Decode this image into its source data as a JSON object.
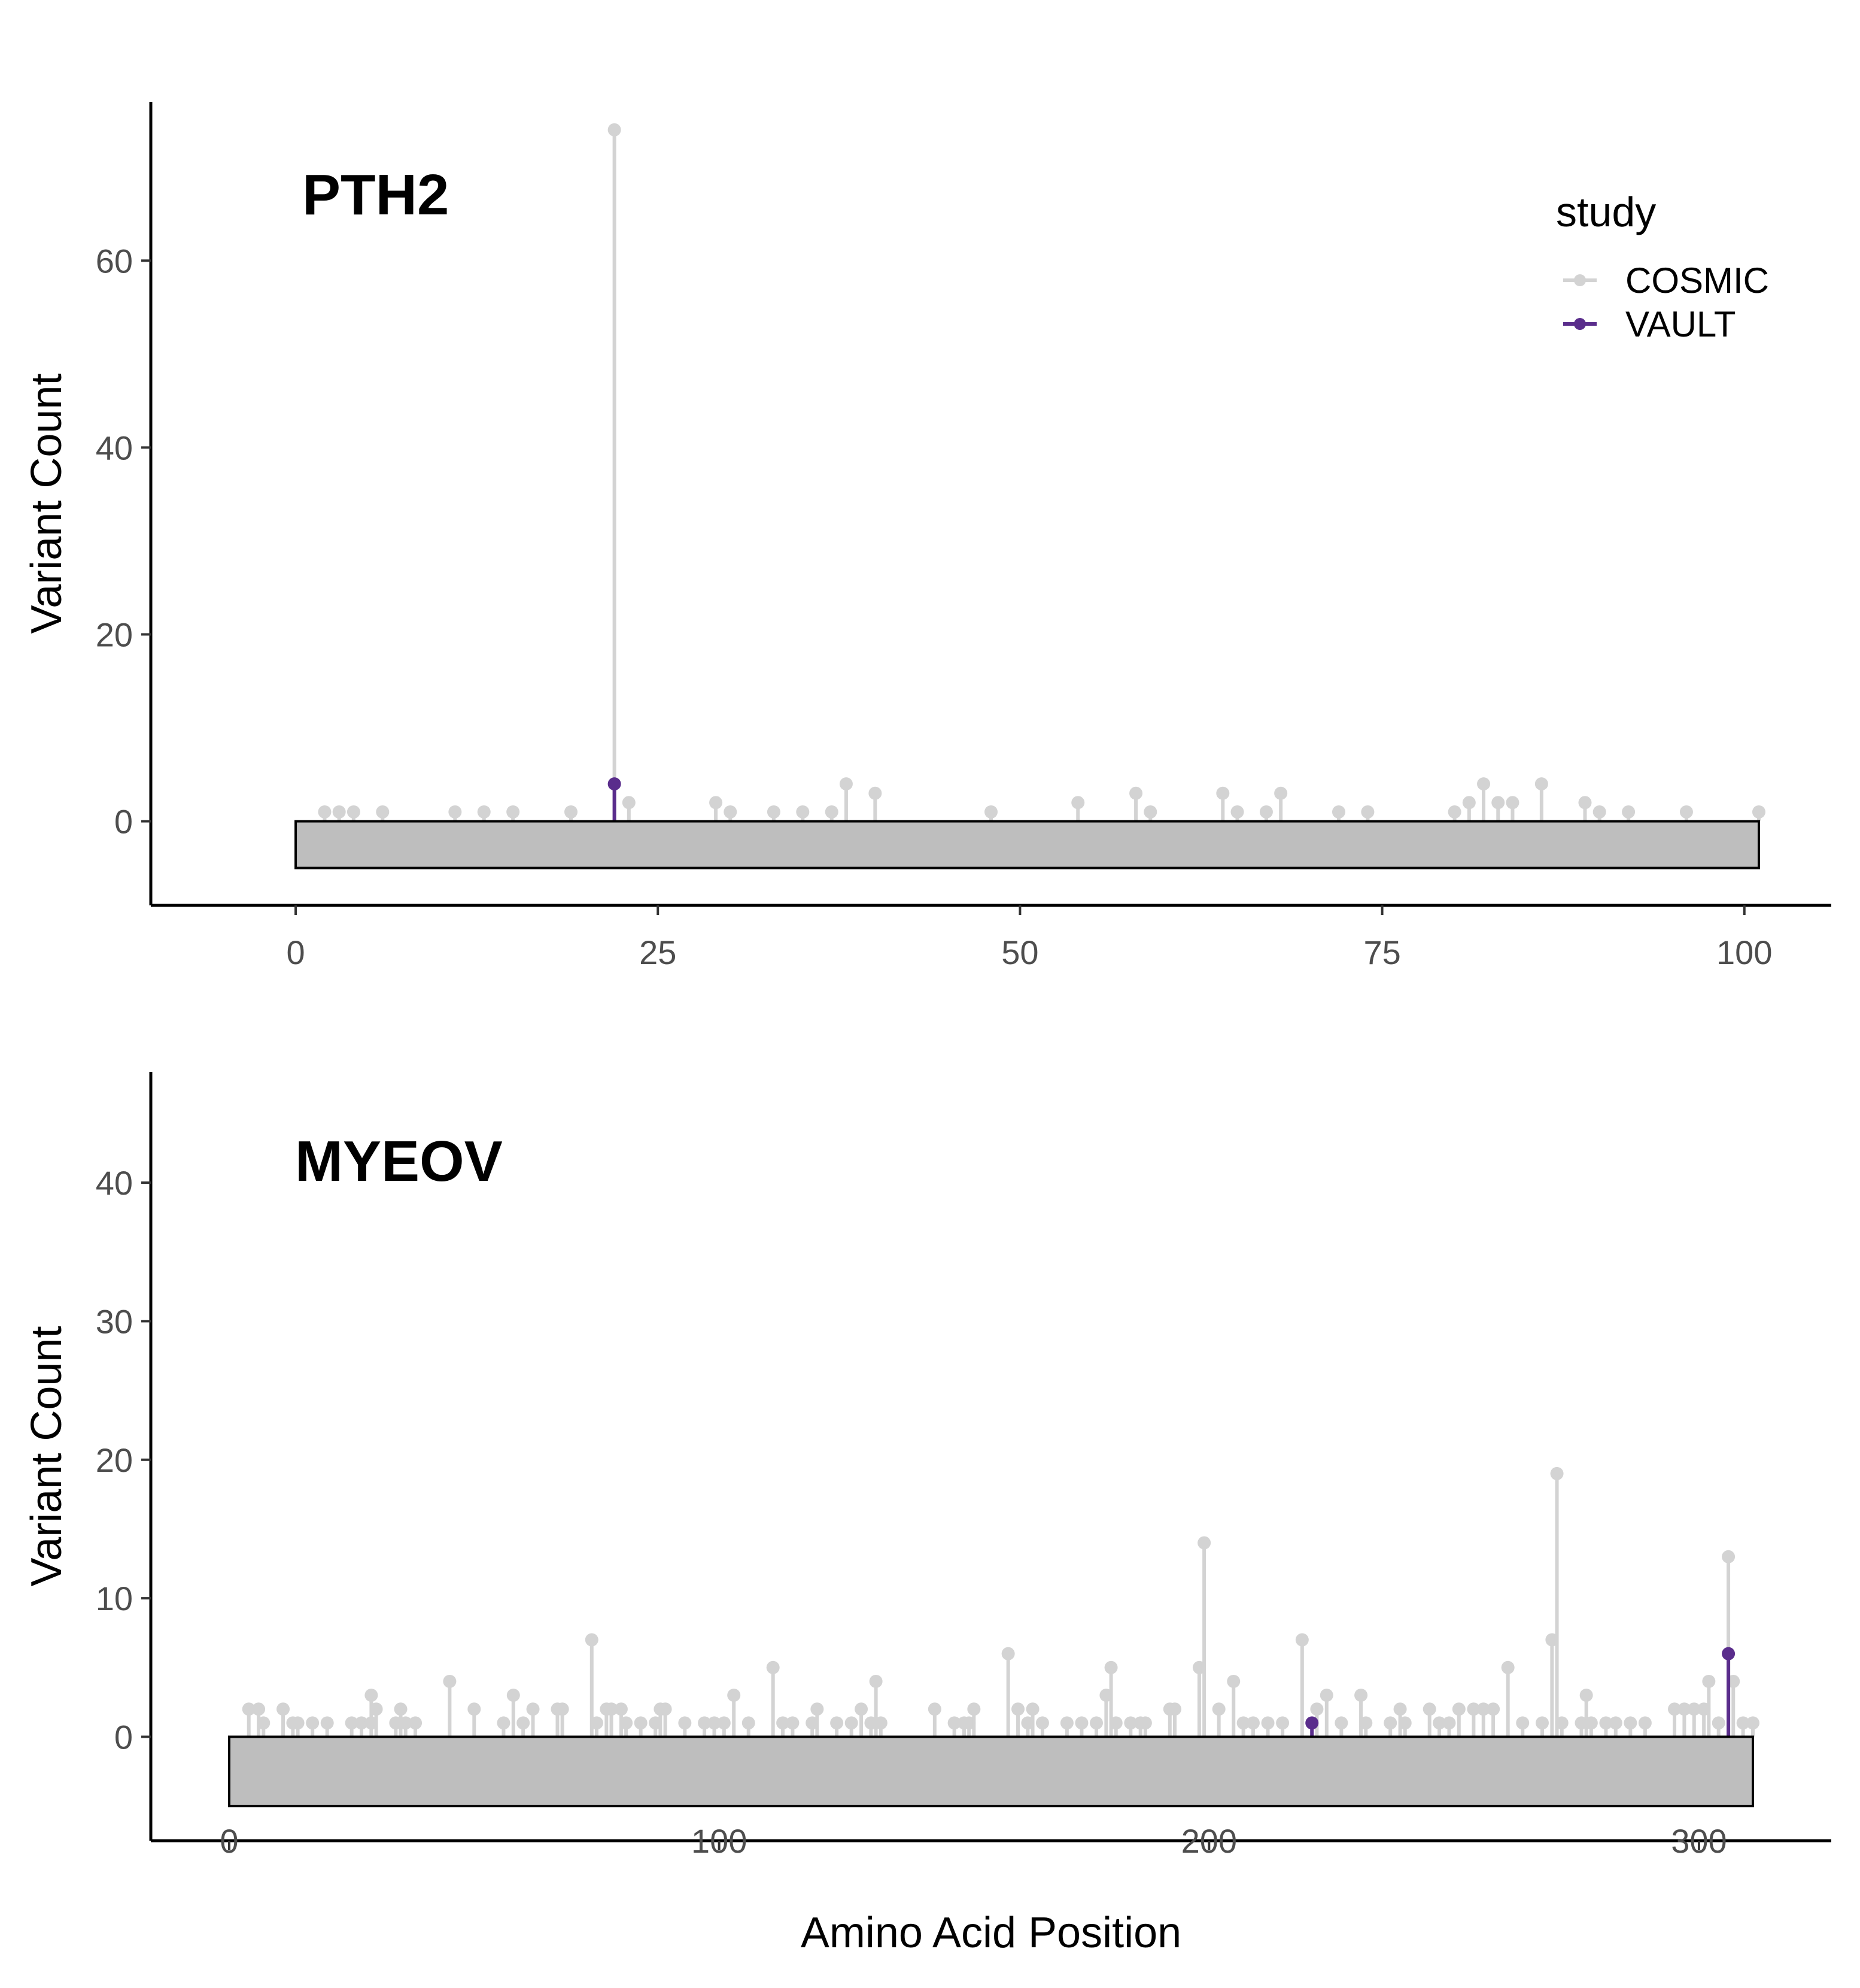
{
  "chart_data": [
    {
      "type": "lollipop",
      "title": "PTH2",
      "xlabel": "",
      "ylabel": "Variant Count",
      "xlim": [
        -10,
        106
      ],
      "ylim": [
        -9,
        77
      ],
      "x_ticks": [
        0,
        25,
        50,
        75,
        100
      ],
      "y_ticks": [
        0,
        20,
        40,
        60
      ],
      "protein_length": 101,
      "domain_bar_depth": 5,
      "domain_bar_color": "#bebebe",
      "grid": false,
      "legend_position": "top-right",
      "legend_title": "study",
      "series": [
        {
          "name": "COSMIC",
          "color": "#d3d3d3",
          "points": [
            [
              2,
              1
            ],
            [
              3,
              1
            ],
            [
              4,
              1
            ],
            [
              6,
              1
            ],
            [
              11,
              1
            ],
            [
              13,
              1
            ],
            [
              15,
              1
            ],
            [
              19,
              1
            ],
            [
              22,
              74
            ],
            [
              23,
              2
            ],
            [
              29,
              2
            ],
            [
              30,
              1
            ],
            [
              33,
              1
            ],
            [
              35,
              1
            ],
            [
              37,
              1
            ],
            [
              38,
              4
            ],
            [
              40,
              3
            ],
            [
              48,
              1
            ],
            [
              54,
              2
            ],
            [
              58,
              3
            ],
            [
              59,
              1
            ],
            [
              64,
              3
            ],
            [
              65,
              1
            ],
            [
              67,
              1
            ],
            [
              68,
              3
            ],
            [
              72,
              1
            ],
            [
              74,
              1
            ],
            [
              80,
              1
            ],
            [
              81,
              2
            ],
            [
              82,
              4
            ],
            [
              83,
              2
            ],
            [
              84,
              2
            ],
            [
              86,
              4
            ],
            [
              89,
              2
            ],
            [
              90,
              1
            ],
            [
              92,
              1
            ],
            [
              96,
              1
            ],
            [
              101,
              1
            ]
          ]
        },
        {
          "name": "VAULT",
          "color": "#5a2d8c",
          "points": [
            [
              22,
              4
            ]
          ]
        }
      ]
    },
    {
      "type": "lollipop",
      "title": "MYEOV",
      "xlabel": "Amino Acid Position",
      "ylabel": "Variant Count",
      "xlim": [
        -16,
        327
      ],
      "ylim": [
        -7.5,
        48
      ],
      "x_ticks": [
        0,
        100,
        200,
        300
      ],
      "y_ticks": [
        0,
        10,
        20,
        30,
        40
      ],
      "protein_length": 311,
      "domain_bar_depth": 5,
      "domain_bar_color": "#bebebe",
      "grid": false,
      "series": [
        {
          "name": "COSMIC",
          "color": "#d3d3d3",
          "points": [
            [
              4,
              2
            ],
            [
              6,
              2
            ],
            [
              7,
              1
            ],
            [
              11,
              2
            ],
            [
              13,
              1
            ],
            [
              14,
              1
            ],
            [
              17,
              1
            ],
            [
              20,
              1
            ],
            [
              25,
              1
            ],
            [
              27,
              1
            ],
            [
              29,
              1
            ],
            [
              29,
              3
            ],
            [
              30,
              2
            ],
            [
              34,
              1
            ],
            [
              35,
              2
            ],
            [
              36,
              1
            ],
            [
              38,
              1
            ],
            [
              45,
              4
            ],
            [
              50,
              2
            ],
            [
              56,
              1
            ],
            [
              58,
              3
            ],
            [
              60,
              1
            ],
            [
              62,
              2
            ],
            [
              67,
              2
            ],
            [
              68,
              2
            ],
            [
              74,
              7
            ],
            [
              75,
              1
            ],
            [
              77,
              2
            ],
            [
              78,
              2
            ],
            [
              80,
              2
            ],
            [
              81,
              1
            ],
            [
              84,
              1
            ],
            [
              87,
              1
            ],
            [
              88,
              2
            ],
            [
              89,
              2
            ],
            [
              93,
              1
            ],
            [
              97,
              1
            ],
            [
              99,
              1
            ],
            [
              101,
              1
            ],
            [
              103,
              3
            ],
            [
              106,
              1
            ],
            [
              111,
              5
            ],
            [
              113,
              1
            ],
            [
              115,
              1
            ],
            [
              119,
              1
            ],
            [
              120,
              2
            ],
            [
              124,
              1
            ],
            [
              127,
              1
            ],
            [
              129,
              2
            ],
            [
              131,
              1
            ],
            [
              132,
              4
            ],
            [
              133,
              1
            ],
            [
              144,
              2
            ],
            [
              148,
              1
            ],
            [
              150,
              1
            ],
            [
              151,
              1
            ],
            [
              152,
              2
            ],
            [
              159,
              6
            ],
            [
              161,
              2
            ],
            [
              163,
              1
            ],
            [
              164,
              2
            ],
            [
              166,
              1
            ],
            [
              171,
              1
            ],
            [
              174,
              1
            ],
            [
              177,
              1
            ],
            [
              179,
              3
            ],
            [
              180,
              5
            ],
            [
              181,
              1
            ],
            [
              184,
              1
            ],
            [
              186,
              1
            ],
            [
              187,
              1
            ],
            [
              192,
              2
            ],
            [
              193,
              2
            ],
            [
              198,
              5
            ],
            [
              199,
              14
            ],
            [
              202,
              2
            ],
            [
              205,
              4
            ],
            [
              207,
              1
            ],
            [
              209,
              1
            ],
            [
              212,
              1
            ],
            [
              215,
              1
            ],
            [
              219,
              7
            ],
            [
              222,
              2
            ],
            [
              224,
              3
            ],
            [
              227,
              1
            ],
            [
              231,
              3
            ],
            [
              232,
              1
            ],
            [
              237,
              1
            ],
            [
              239,
              2
            ],
            [
              240,
              1
            ],
            [
              245,
              2
            ],
            [
              247,
              1
            ],
            [
              249,
              1
            ],
            [
              251,
              2
            ],
            [
              254,
              2
            ],
            [
              256,
              2
            ],
            [
              258,
              2
            ],
            [
              261,
              5
            ],
            [
              264,
              1
            ],
            [
              268,
              1
            ],
            [
              270,
              7
            ],
            [
              271,
              19
            ],
            [
              272,
              1
            ],
            [
              276,
              1
            ],
            [
              277,
              3
            ],
            [
              278,
              1
            ],
            [
              281,
              1
            ],
            [
              283,
              1
            ],
            [
              286,
              1
            ],
            [
              289,
              1
            ],
            [
              295,
              2
            ],
            [
              297,
              2
            ],
            [
              299,
              2
            ],
            [
              301,
              2
            ],
            [
              302,
              4
            ],
            [
              304,
              1
            ],
            [
              306,
              13
            ],
            [
              307,
              4
            ],
            [
              309,
              1
            ],
            [
              311,
              1
            ]
          ]
        },
        {
          "name": "VAULT",
          "color": "#5a2d8c",
          "points": [
            [
              221,
              1
            ],
            [
              306,
              6
            ]
          ]
        }
      ]
    }
  ]
}
